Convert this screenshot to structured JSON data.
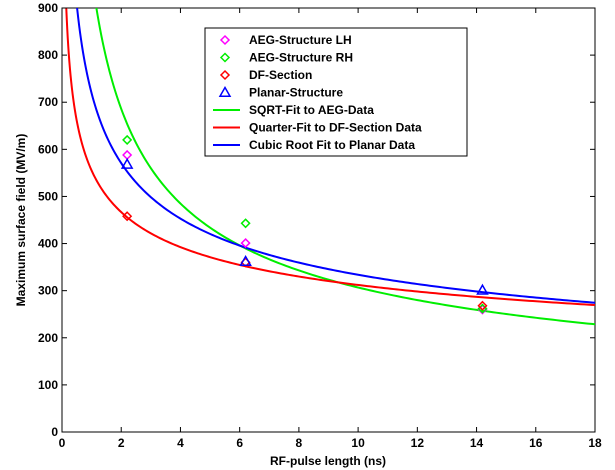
{
  "chart_data": {
    "type": "scatter",
    "title": "",
    "xlabel": "RF-pulse length (ns)",
    "ylabel": "Maximum surface field (MV/m)",
    "xlim": [
      0,
      18
    ],
    "ylim": [
      0,
      900
    ],
    "x_ticks": [
      "0",
      "2",
      "4",
      "6",
      "8",
      "10",
      "12",
      "14",
      "16",
      "18"
    ],
    "y_ticks": [
      "0",
      "100",
      "200",
      "300",
      "400",
      "500",
      "600",
      "700",
      "800",
      "900"
    ],
    "grid": false,
    "legend_position": "top-center",
    "series": [
      {
        "name": "AEG-Structure LH",
        "kind": "markers",
        "marker": "diamond",
        "color": "#ff00ff",
        "x": [
          2.2,
          6.2,
          14.2
        ],
        "y": [
          588,
          401,
          260
        ]
      },
      {
        "name": "AEG-Structure RH",
        "kind": "markers",
        "marker": "diamond",
        "color": "#00ee00",
        "x": [
          2.2,
          6.2,
          14.2
        ],
        "y": [
          620,
          443,
          262
        ]
      },
      {
        "name": "DF-Section",
        "kind": "markers",
        "marker": "diamond",
        "color": "#ff0000",
        "x": [
          2.2,
          6.2,
          14.2
        ],
        "y": [
          458,
          360,
          268
        ]
      },
      {
        "name": "Planar-Structure",
        "kind": "markers",
        "marker": "triangle",
        "color": "#0000ff",
        "x": [
          2.2,
          6.2,
          14.2
        ],
        "y": [
          568,
          362,
          301
        ]
      },
      {
        "name": "SQRT-Fit to AEG-Data",
        "kind": "line",
        "color": "#00ee00",
        "exponent": -0.5,
        "coefficient": 970,
        "x_range": [
          0.1,
          18
        ]
      },
      {
        "name": "Quarter-Fit to DF-Section Data",
        "kind": "line",
        "color": "#ff0000",
        "exponent": -0.25,
        "coefficient": 555,
        "x_range": [
          0.1,
          18
        ]
      },
      {
        "name": "Cubic Root Fit to Planar Data",
        "kind": "line",
        "color": "#0000ff",
        "exponent": -0.3333,
        "coefficient": 719,
        "x_range": [
          0.1,
          18
        ]
      }
    ]
  }
}
